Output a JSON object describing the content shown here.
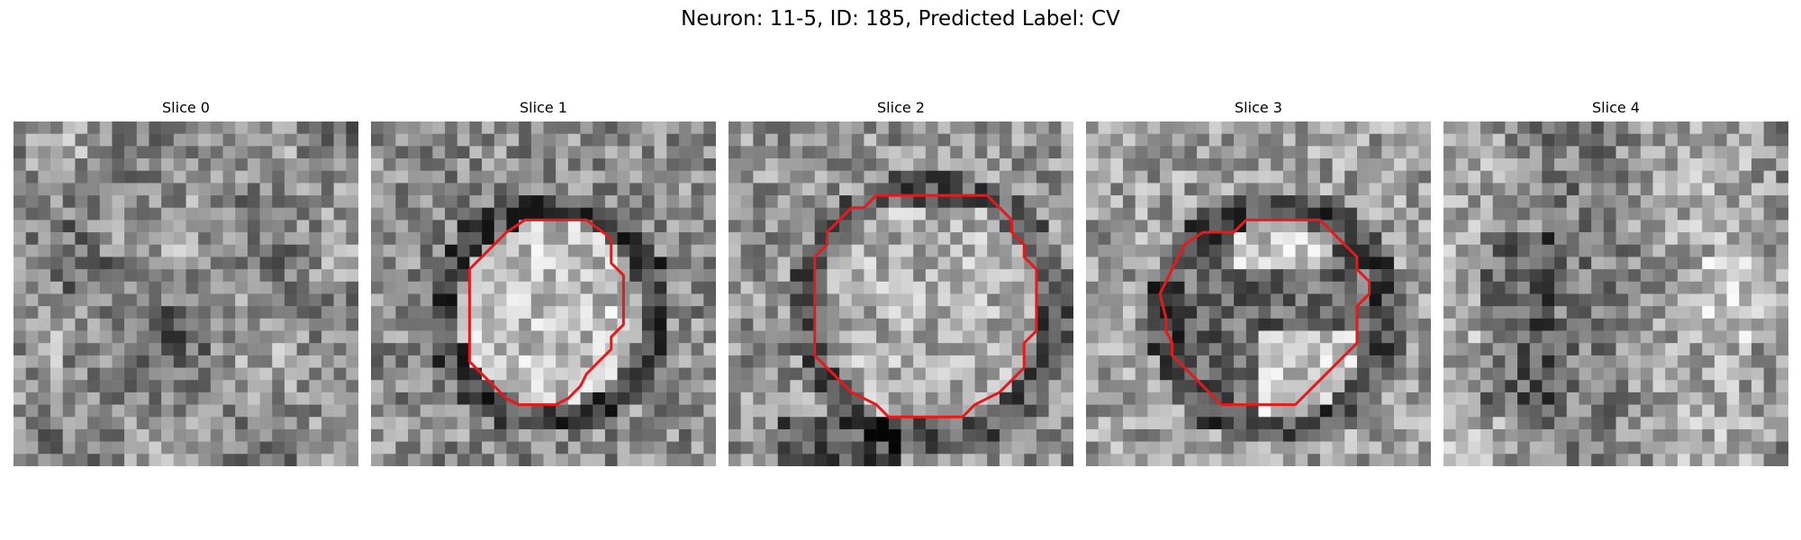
{
  "figure": {
    "title": "Neuron: 11-5, ID: 185, Predicted Label: CV",
    "colormap": "gray",
    "contour_color": "#e41a1c",
    "grid_size": 28
  },
  "slices": [
    {
      "title": "Slice 0",
      "has_contour": false,
      "seed": 11
    },
    {
      "title": "Slice 1",
      "has_contour": true,
      "seed": 23
    },
    {
      "title": "Slice 2",
      "has_contour": true,
      "seed": 37
    },
    {
      "title": "Slice 3",
      "has_contour": true,
      "seed": 51
    },
    {
      "title": "Slice 4",
      "has_contour": false,
      "seed": 67
    }
  ]
}
